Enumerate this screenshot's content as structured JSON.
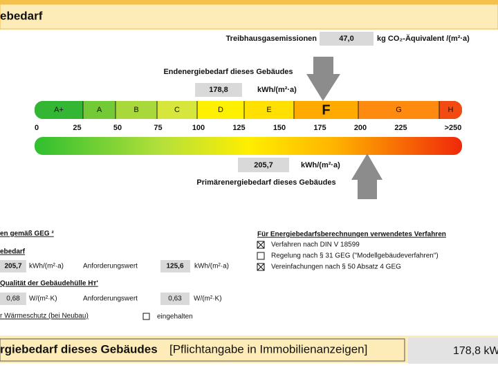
{
  "header": {
    "title": "ebedarf"
  },
  "emissions": {
    "label": "Treibhausgasemissionen",
    "value": "47,0",
    "unit": "kg CO₂-Äquivalent /(m²·a)"
  },
  "final_energy": {
    "label": "Endenergiebedarf dieses Gebäudes",
    "value": "178,8",
    "unit": "kWh/(m²·a)"
  },
  "scale": {
    "classes": [
      "A+",
      "A",
      "B",
      "C",
      "D",
      "E",
      "F",
      "G",
      "H"
    ],
    "ticks": [
      0,
      25,
      50,
      75,
      100,
      125,
      150,
      175,
      200,
      225,
      {
        "value": 250,
        "label": ">250"
      }
    ]
  },
  "primary_energy": {
    "label": "Primärenergiebedarf dieses Gebäudes",
    "value": "205,7",
    "unit": "kWh/(m²·a)"
  },
  "requirements": {
    "title": "en gemäß GEG ²",
    "primary": {
      "label": "ebedarf",
      "value": "205,7",
      "unit": "kWh/(m²·a)",
      "req_label": "Anforderungswert",
      "req_value": "125,6",
      "req_unit": "kWh/(m²·a)"
    },
    "envelope": {
      "label": "Qualität der Gebäudehülle Hᴛ'",
      "value": "0,68",
      "unit": "W/(m²·K)",
      "req_label": "Anforderungswert",
      "req_value": "0,63",
      "req_unit": "W/(m²·K)"
    },
    "heat_protection": {
      "label": "r Wärmeschutz (bei Neubau)",
      "check_label": "eingehalten"
    }
  },
  "method": {
    "title": "Für Energiebedarfsberechnungen verwendetes Verfahren",
    "options": [
      "Verfahren nach DIN V 18599",
      "Regelung nach § 31 GEG (\"Modellgebäudeverfahren\")",
      "Vereinfachungen nach § 50 Absatz 4 GEG"
    ]
  },
  "footer": {
    "title": "rgiebedarf dieses Gebäudes",
    "note": "[Pflichtangabe in Immobilienanzeigen]",
    "value": "178,8 kW"
  }
}
